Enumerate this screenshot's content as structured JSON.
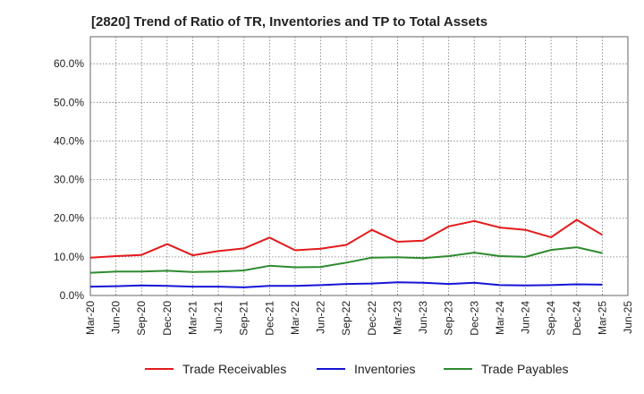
{
  "title": "[2820]  Trend of Ratio of TR, Inventories and TP to Total Assets",
  "chart_data": {
    "type": "line",
    "title": "[2820]  Trend of Ratio of TR, Inventories and TP to Total Assets",
    "xlabel": "",
    "ylabel": "",
    "ylim": [
      0,
      67
    ],
    "y_ticks": [
      "0.0%",
      "10.0%",
      "20.0%",
      "30.0%",
      "40.0%",
      "50.0%",
      "60.0%"
    ],
    "grid": true,
    "legend_position": "bottom",
    "x_ticks": [
      "Mar-20",
      "Jun-20",
      "Sep-20",
      "Dec-20",
      "Mar-21",
      "Jun-21",
      "Sep-21",
      "Dec-21",
      "Mar-22",
      "Jun-22",
      "Sep-22",
      "Dec-22",
      "Mar-23",
      "Jun-23",
      "Sep-23",
      "Dec-23",
      "Mar-24",
      "Jun-24",
      "Sep-24",
      "Dec-24",
      "Mar-25",
      "Jun-25"
    ],
    "x": [
      "Mar-20",
      "Jun-20",
      "Sep-20",
      "Dec-20",
      "Mar-21",
      "Jun-21",
      "Sep-21",
      "Dec-21",
      "Mar-22",
      "Jun-22",
      "Sep-22",
      "Dec-22",
      "Mar-23",
      "Jun-23",
      "Sep-23",
      "Dec-23",
      "Mar-24",
      "Jun-24",
      "Sep-24",
      "Dec-24",
      "Mar-25"
    ],
    "series": [
      {
        "name": "Trade Receivables",
        "color": "#e41a1c",
        "values": [
          9.8,
          10.2,
          10.5,
          13.3,
          10.4,
          11.5,
          12.2,
          15.0,
          11.7,
          12.1,
          13.1,
          17.0,
          13.9,
          14.2,
          17.9,
          19.3,
          17.6,
          17.0,
          15.1,
          19.6,
          15.7
        ]
      },
      {
        "name": "Inventories",
        "color": "#1515d6",
        "values": [
          2.3,
          2.4,
          2.6,
          2.5,
          2.3,
          2.3,
          2.1,
          2.5,
          2.5,
          2.7,
          3.0,
          3.1,
          3.4,
          3.3,
          3.0,
          3.3,
          2.7,
          2.6,
          2.7,
          2.9,
          2.8
        ]
      },
      {
        "name": "Trade Payables",
        "color": "#2e8b2e",
        "values": [
          5.9,
          6.2,
          6.2,
          6.4,
          6.1,
          6.2,
          6.5,
          7.7,
          7.3,
          7.4,
          8.5,
          9.8,
          9.9,
          9.7,
          10.2,
          11.1,
          10.2,
          10.0,
          11.8,
          12.5,
          11.0
        ]
      }
    ]
  }
}
